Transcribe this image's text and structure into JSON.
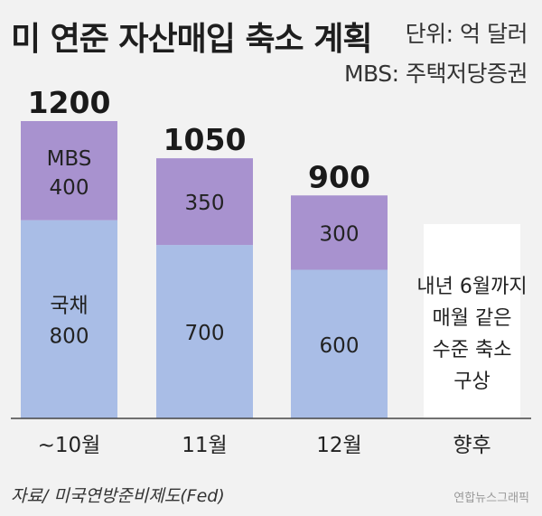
{
  "title": "미 연준 자산매입 축소 계획",
  "unit_label": "단위: 억 달러",
  "mbs_note": "MBS: 주택저당증권",
  "chart_data": {
    "type": "bar",
    "stacked": true,
    "categories": [
      "~10월",
      "11월",
      "12월",
      "향후"
    ],
    "series": [
      {
        "name": "국채",
        "values": [
          800,
          700,
          600,
          null
        ],
        "color": "#a9bde6"
      },
      {
        "name": "MBS",
        "values": [
          400,
          350,
          300,
          null
        ],
        "color": "#a892cf"
      }
    ],
    "totals": [
      1200,
      1050,
      900,
      null
    ],
    "segment_label_names": {
      "국채": "국채",
      "MBS": "MBS"
    },
    "future_note_lines": [
      "내년 6월까지",
      "매월 같은",
      "수준 축소",
      "구상"
    ],
    "ylim": [
      0,
      1200
    ],
    "title": "미 연준 자산매입 축소 계획",
    "xlabel": "",
    "ylabel": "단위: 억 달러"
  },
  "source": "자료/ 미국연방준비제도(Fed)",
  "credit": "연합뉴스그래픽",
  "colors": {
    "treasury": "#a9bde6",
    "mbs": "#a892cf",
    "future_box": "#ffffff",
    "axis": "#444444"
  }
}
